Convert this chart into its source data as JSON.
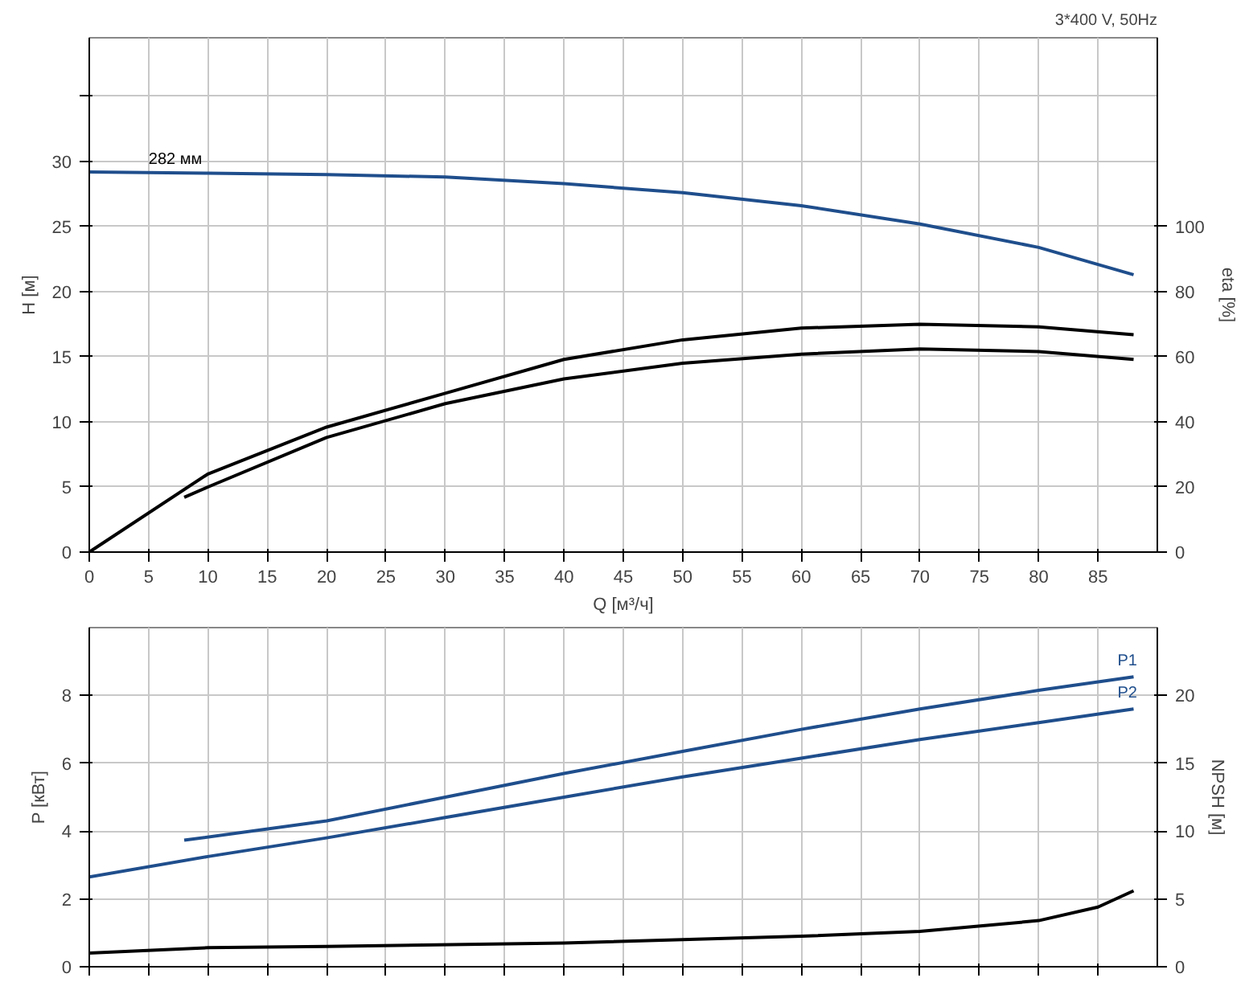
{
  "chart_data": [
    {
      "type": "line",
      "title": "3*400 V, 50Hz",
      "xlabel": "Q [м³/ч]",
      "ylabel": "H [м]",
      "y2label": "eta [%]",
      "xlim": [
        0,
        90
      ],
      "xticks": [
        0,
        5,
        10,
        15,
        20,
        25,
        30,
        35,
        40,
        45,
        50,
        55,
        60,
        65,
        70,
        75,
        80,
        85
      ],
      "ylim": [
        0,
        39.5
      ],
      "yticks": [
        0,
        5,
        10,
        15,
        20,
        25,
        30,
        {
          "value": 35,
          "label": null
        }
      ],
      "y2lim": [
        0,
        158
      ],
      "y2ticks": [
        0,
        20,
        40,
        60,
        80,
        100
      ],
      "grid": true,
      "annotations": [
        {
          "text": "282 мм",
          "x": 5,
          "y": 29.2
        }
      ],
      "series": [
        {
          "color": "#1f4e8c",
          "x": [
            0,
            10,
            20,
            30,
            40,
            50,
            60,
            70,
            80,
            88
          ],
          "values": [
            29.2,
            29.1,
            29.0,
            28.8,
            28.3,
            27.6,
            26.6,
            25.2,
            23.4,
            21.3
          ]
        },
        {
          "color": "#000000",
          "axis": "y2",
          "x": [
            0,
            10,
            20,
            30,
            40,
            50,
            60,
            70,
            80,
            88
          ],
          "values": [
            0,
            24,
            38.4,
            48.8,
            59.2,
            65.2,
            68.8,
            70,
            69.2,
            66.8
          ]
        },
        {
          "color": "#000000",
          "axis": "y2",
          "x": [
            8,
            10,
            20,
            30,
            40,
            50,
            60,
            70,
            80,
            88
          ],
          "values": [
            16.8,
            20,
            35.2,
            45.6,
            53.2,
            58,
            60.8,
            62.4,
            61.6,
            59.2
          ]
        }
      ]
    },
    {
      "type": "line",
      "ylabel": "P [кВт]",
      "y2label": "NPSH [м]",
      "xlim": [
        0,
        90
      ],
      "xticks": [
        0,
        5,
        10,
        15,
        20,
        25,
        30,
        35,
        40,
        45,
        50,
        55,
        60,
        65,
        70,
        75,
        80,
        85
      ],
      "ylim": [
        0,
        10
      ],
      "yticks": [
        0,
        2,
        4,
        6,
        8
      ],
      "y2lim": [
        0,
        25
      ],
      "y2ticks": [
        0,
        5,
        10,
        15,
        20
      ],
      "grid": true,
      "tick_labels": "y",
      "series": [
        {
          "name": "P1",
          "color": "#1f4e8c",
          "x": [
            8,
            20,
            30,
            40,
            50,
            60,
            70,
            80,
            88
          ],
          "values": [
            3.73,
            4.3,
            5.0,
            5.7,
            6.35,
            7.0,
            7.6,
            8.15,
            8.55
          ]
        },
        {
          "name": "P2",
          "color": "#1f4e8c",
          "x": [
            0,
            10,
            20,
            30,
            40,
            50,
            60,
            70,
            80,
            88
          ],
          "values": [
            2.65,
            3.25,
            3.8,
            4.4,
            5.0,
            5.6,
            6.15,
            6.7,
            7.2,
            7.6
          ]
        },
        {
          "color": "#000000",
          "axis": "y2",
          "x": [
            0,
            10,
            20,
            40,
            60,
            70,
            80,
            85,
            88
          ],
          "values": [
            1.0,
            1.4,
            1.5,
            1.75,
            2.25,
            2.6,
            3.4,
            4.4,
            5.6
          ]
        }
      ]
    }
  ]
}
